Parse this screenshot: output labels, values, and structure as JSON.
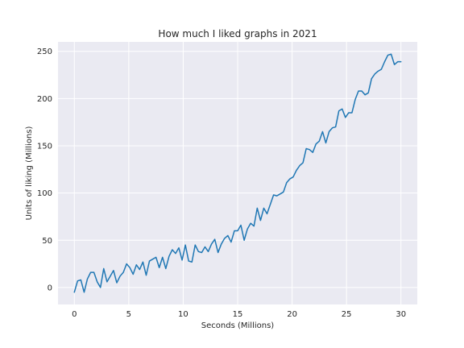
{
  "chart_data": {
    "type": "line",
    "title": "How much I liked graphs in 2021",
    "xlabel": "Seconds (Millions)",
    "ylabel": "Units of liking (Millions)",
    "xlim": [
      -1.5,
      31.5
    ],
    "ylim": [
      -18,
      260
    ],
    "xticks": [
      0,
      5,
      10,
      15,
      20,
      25,
      30
    ],
    "yticks": [
      0,
      50,
      100,
      150,
      200,
      250
    ],
    "grid": true,
    "colors": {
      "background": "#EAEAF2",
      "grid": "#FFFFFF",
      "line": "#1F77B4"
    },
    "series": [
      {
        "x": [
          0.0,
          0.3,
          0.6,
          0.9,
          1.2,
          1.5,
          1.8,
          2.1,
          2.4,
          2.7,
          3.0,
          3.3,
          3.6,
          3.9,
          4.2,
          4.5,
          4.8,
          5.1,
          5.4,
          5.7,
          6.0,
          6.3,
          6.6,
          6.9,
          7.2,
          7.5,
          7.8,
          8.1,
          8.4,
          8.7,
          9.0,
          9.3,
          9.6,
          9.9,
          10.2,
          10.5,
          10.8,
          11.1,
          11.4,
          11.7,
          12.0,
          12.3,
          12.6,
          12.9,
          13.2,
          13.5,
          13.8,
          14.1,
          14.4,
          14.7,
          15.0,
          15.3,
          15.6,
          15.9,
          16.2,
          16.5,
          16.8,
          17.1,
          17.4,
          17.7,
          18.0,
          18.3,
          18.6,
          18.9,
          19.2,
          19.5,
          19.8,
          20.1,
          20.4,
          20.7,
          21.0,
          21.3,
          21.6,
          21.9,
          22.2,
          22.5,
          22.8,
          23.1,
          23.4,
          23.7,
          24.0,
          24.3,
          24.6,
          24.9,
          25.2,
          25.5,
          25.8,
          26.1,
          26.4,
          26.7,
          27.0,
          27.3,
          27.6,
          27.9,
          28.2,
          28.5,
          28.8,
          29.1,
          29.4,
          29.7,
          30.0
        ],
        "y": [
          -5,
          7,
          8,
          -5,
          9,
          16,
          16,
          6,
          0,
          20,
          6,
          12,
          18,
          5,
          12,
          16,
          25,
          21,
          14,
          24,
          19,
          27,
          13,
          28,
          30,
          32,
          21,
          32,
          20,
          33,
          40,
          36,
          42,
          29,
          45,
          28,
          27,
          45,
          38,
          37,
          43,
          38,
          46,
          51,
          37,
          46,
          52,
          55,
          48,
          60,
          60,
          66,
          50,
          62,
          68,
          65,
          84,
          71,
          84,
          78,
          88,
          98,
          97,
          99,
          101,
          111,
          115,
          117,
          124,
          129,
          132,
          147,
          146,
          143,
          152,
          155,
          165,
          153,
          165,
          169,
          170,
          187,
          189,
          180,
          185,
          185,
          199,
          208,
          208,
          204,
          206,
          221,
          226,
          229,
          231,
          239,
          246,
          247,
          236,
          239,
          239
        ]
      }
    ]
  }
}
